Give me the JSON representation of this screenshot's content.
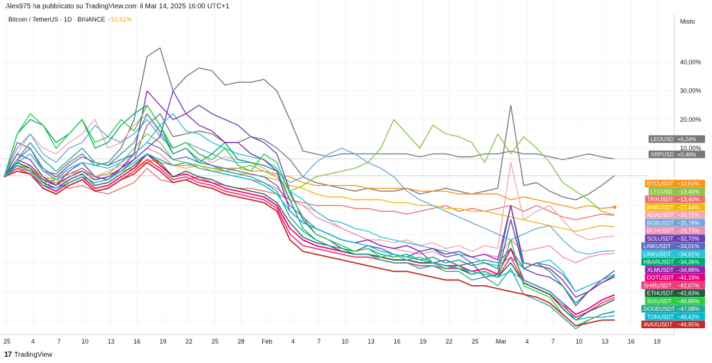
{
  "header": {
    "published": "Alex975 ha pubblicato su TradingView.com il Mar 14, 2025 16:00 UTC+1",
    "symbol": "Bitcoin / TetherUS · 1D · BINANCE",
    "change": "−10,61%"
  },
  "scale_title": "Misto",
  "footer": {
    "logo": "17",
    "brand": "TradingView"
  },
  "chart_data": {
    "type": "line",
    "title": "Bitcoin / TetherUS · 1D · BINANCE",
    "ylabel": "Misto",
    "ylim": [
      -55,
      52
    ],
    "grid": true,
    "x_ticks": [
      "25",
      "4",
      "7",
      "10",
      "13",
      "16",
      "19",
      "22",
      "25",
      "28",
      "Feb",
      "4",
      "7",
      "10",
      "13",
      "16",
      "19",
      "22",
      "25",
      "Mar",
      "4",
      "7",
      "10",
      "13",
      "16",
      "19"
    ],
    "y_ticks": [
      "40,00%",
      "30,00%",
      "20,00%",
      "10,00%"
    ],
    "y_tick_values": [
      40,
      30,
      20,
      10
    ],
    "series": [
      {
        "name": "LEOUSD",
        "color": "#777777",
        "end": 6.24,
        "label": "+6,24%",
        "values": [
          0,
          12,
          10,
          2,
          1,
          5,
          8,
          4,
          5,
          10,
          20,
          42,
          45,
          30,
          35,
          38,
          37,
          32,
          33,
          33,
          34,
          30,
          20,
          9,
          8,
          7,
          8,
          8,
          8,
          8,
          8,
          8,
          7,
          8,
          8,
          7,
          7,
          8,
          8,
          9,
          8,
          8,
          7,
          6,
          7,
          8,
          7,
          6.24
        ]
      },
      {
        "name": "XRPUSD",
        "color": "#777777",
        "end": 0.46,
        "label": "+0,46%",
        "values": [
          0,
          4,
          3,
          -2,
          -1,
          1,
          3,
          0,
          -1,
          2,
          6,
          18,
          22,
          14,
          15,
          16,
          15,
          12,
          12,
          14,
          13,
          10,
          6,
          0,
          -2,
          -3,
          -4,
          -5,
          -4,
          -5,
          -5,
          -4,
          -6,
          -5,
          -4,
          -5,
          -6,
          -5,
          -4,
          25,
          -3,
          -2,
          -5,
          -7,
          -8,
          -6,
          -3,
          0.46
        ]
      },
      {
        "name": "BTCUSDT",
        "color": "#f7931a",
        "end": -10.61,
        "label": "−10,61%",
        "values": [
          0,
          3,
          2,
          -1,
          0,
          1,
          2,
          0,
          1,
          2,
          3,
          6,
          5,
          4,
          4,
          4,
          3,
          3,
          3,
          2,
          2,
          1,
          0,
          -2,
          -3,
          -3,
          -3,
          -3,
          -4,
          -4,
          -4,
          -4,
          -5,
          -5,
          -5,
          -6,
          -6,
          -6,
          -6,
          -8,
          -7,
          -8,
          -9,
          -10,
          -11,
          -10,
          -11,
          -10.61
        ]
      },
      {
        "name": "LTCUSD",
        "color": "#8bc34a",
        "end": -13.4,
        "label": "−13,40%",
        "values": [
          0,
          5,
          3,
          -1,
          -2,
          0,
          2,
          0,
          1,
          5,
          10,
          15,
          12,
          6,
          5,
          4,
          3,
          2,
          3,
          4,
          2,
          0,
          -5,
          -3,
          0,
          1,
          2,
          3,
          5,
          10,
          20,
          15,
          10,
          18,
          15,
          14,
          12,
          5,
          15,
          8,
          14,
          10,
          5,
          -2,
          -5,
          -8,
          -12,
          -13.4
        ]
      },
      {
        "name": "TRXUSDT",
        "color": "#e57373",
        "end": -13.4,
        "label": "−13,40%",
        "values": [
          0,
          2,
          1,
          -3,
          -2,
          -4,
          -3,
          -5,
          -6,
          -4,
          -2,
          3,
          -1,
          -2,
          -1,
          0,
          -2,
          -3,
          -4,
          -4,
          -5,
          -6,
          -8,
          -9,
          -10,
          -10,
          -10,
          -11,
          -11,
          -12,
          -12,
          -13,
          -12,
          -11,
          -10,
          -12,
          -11,
          -12,
          -11,
          -10,
          -12,
          -10,
          -12,
          -14,
          -15,
          -14,
          -13,
          -13.4
        ]
      },
      {
        "name": "BNBUSDT",
        "color": "#f0b90b",
        "end": -17.44,
        "label": "−17,44%",
        "values": [
          0,
          3,
          4,
          0,
          -1,
          -2,
          0,
          -1,
          0,
          2,
          3,
          5,
          6,
          4,
          3,
          4,
          2,
          2,
          1,
          1,
          0,
          -1,
          -3,
          -4,
          -6,
          -7,
          -7,
          -8,
          -8,
          -8,
          -9,
          -9,
          -10,
          -10,
          -11,
          -11,
          -12,
          -12,
          -13,
          -14,
          -15,
          -16,
          -17,
          -18,
          -19,
          -18,
          -17,
          -17.44
        ]
      },
      {
        "name": "ADAUSDT",
        "color": "#f4a6b8",
        "end": -20.71,
        "label": "−20,71%",
        "values": [
          0,
          8,
          15,
          10,
          8,
          12,
          15,
          20,
          10,
          12,
          18,
          22,
          15,
          10,
          12,
          8,
          5,
          7,
          6,
          5,
          3,
          0,
          -8,
          -10,
          -12,
          -15,
          -18,
          -20,
          -22,
          -22,
          -23,
          -22,
          -24,
          -23,
          -25,
          -24,
          -26,
          -24,
          -25,
          5,
          -15,
          -12,
          -10,
          -15,
          -20,
          -22,
          -21,
          -20.71
        ]
      },
      {
        "name": "BGBUSDT",
        "color": "#6fa8dc",
        "end": -25.78,
        "label": "−25,78%",
        "values": [
          0,
          10,
          15,
          8,
          5,
          10,
          12,
          18,
          14,
          12,
          15,
          20,
          14,
          10,
          12,
          10,
          8,
          6,
          5,
          5,
          4,
          2,
          -2,
          0,
          5,
          8,
          10,
          8,
          5,
          3,
          0,
          -5,
          -8,
          -10,
          -12,
          -14,
          -16,
          -18,
          -20,
          -22,
          -20,
          -18,
          -17,
          -22,
          -26,
          -27,
          -26,
          -25.78
        ]
      },
      {
        "name": "BCHUSDT",
        "color": "#f48fb1",
        "end": -26.73,
        "label": "−26,73%",
        "values": [
          0,
          5,
          8,
          2,
          0,
          3,
          5,
          0,
          2,
          4,
          6,
          10,
          8,
          4,
          5,
          3,
          2,
          1,
          0,
          -1,
          -2,
          -4,
          -8,
          -10,
          -14,
          -16,
          -18,
          -20,
          -22,
          -24,
          -25,
          -26,
          -27,
          -26,
          -28,
          -27,
          -28,
          -27,
          -28,
          -22,
          -26,
          -25,
          -24,
          -28,
          -30,
          -28,
          -27,
          -26.73
        ]
      },
      {
        "name": "SOLUSDT",
        "color": "#6a3fb5",
        "end": -32.7,
        "label": "−32,70%",
        "values": [
          0,
          8,
          6,
          0,
          -3,
          2,
          5,
          0,
          -1,
          3,
          6,
          10,
          14,
          30,
          22,
          25,
          22,
          20,
          18,
          14,
          12,
          8,
          -5,
          -15,
          -20,
          -22,
          -25,
          -26,
          -24,
          -25,
          -27,
          -28,
          -26,
          -30,
          -29,
          -31,
          -30,
          -35,
          -34,
          -15,
          -32,
          -34,
          -35,
          -38,
          -45,
          -40,
          -36,
          -32.7
        ]
      },
      {
        "name": "LINKUSDT",
        "color": "#5c6bc0",
        "end": -34.01,
        "label": "−34,01%",
        "values": [
          0,
          6,
          10,
          3,
          0,
          4,
          7,
          5,
          4,
          6,
          8,
          12,
          10,
          6,
          7,
          5,
          4,
          3,
          2,
          1,
          0,
          -3,
          -10,
          -14,
          -18,
          -20,
          -22,
          -23,
          -22,
          -24,
          -25,
          -24,
          -26,
          -25,
          -28,
          -27,
          -30,
          -29,
          -30,
          -25,
          -32,
          -30,
          -31,
          -34,
          -40,
          -38,
          -36,
          -34.01
        ]
      },
      {
        "name": "LINKUSDT",
        "color": "#26c6da",
        "end": -34.01,
        "label": "−34,01%",
        "values": [
          0,
          5,
          8,
          2,
          -1,
          3,
          5,
          4,
          3,
          5,
          8,
          12,
          18,
          22,
          16,
          15,
          12,
          10,
          8,
          7,
          6,
          3,
          -5,
          -8,
          -12,
          -15,
          -16,
          -18,
          -19,
          -21,
          -22,
          -23,
          -24,
          -25,
          -26,
          -27,
          -28,
          -30,
          -31,
          -28,
          -32,
          -30,
          -29,
          -33,
          -40,
          -38,
          -36,
          -34.01
        ]
      },
      {
        "name": "HBARUSDT",
        "color": "#00a86b",
        "end": -34.36,
        "label": "−34,36%",
        "values": [
          0,
          15,
          20,
          18,
          12,
          15,
          20,
          10,
          12,
          18,
          22,
          25,
          18,
          8,
          10,
          5,
          8,
          12,
          6,
          5,
          4,
          2,
          -8,
          -18,
          -22,
          -24,
          -25,
          -26,
          -25,
          -27,
          -28,
          -27,
          -29,
          -28,
          -30,
          -29,
          -31,
          -30,
          -32,
          -10,
          -32,
          -30,
          -33,
          -38,
          -44,
          -40,
          -37,
          -34.36
        ]
      },
      {
        "name": "XLMUSDT",
        "color": "#8e24aa",
        "end": -34.88,
        "label": "−34,88%",
        "values": [
          0,
          6,
          4,
          -1,
          -3,
          0,
          2,
          -1,
          0,
          3,
          8,
          30,
          25,
          20,
          22,
          18,
          16,
          12,
          12,
          8,
          6,
          2,
          -12,
          -16,
          -18,
          -20,
          -22,
          -23,
          -22,
          -24,
          -25,
          -24,
          -26,
          -25,
          -27,
          -26,
          -28,
          -27,
          -29,
          -10,
          -30,
          -31,
          -32,
          -36,
          -42,
          -40,
          -37,
          -34.88
        ]
      },
      {
        "name": "DOTUSDT",
        "color": "#e6007a",
        "end": -41.16,
        "label": "−41,16%",
        "values": [
          0,
          4,
          2,
          -3,
          -5,
          -2,
          0,
          -4,
          -3,
          0,
          3,
          8,
          4,
          0,
          1,
          -1,
          -2,
          -4,
          -5,
          -6,
          -7,
          -10,
          -18,
          -22,
          -24,
          -25,
          -26,
          -27,
          -27,
          -28,
          -29,
          -29,
          -30,
          -30,
          -31,
          -31,
          -33,
          -32,
          -34,
          -25,
          -36,
          -38,
          -40,
          -44,
          -48,
          -46,
          -43,
          -41.16
        ]
      },
      {
        "name": "SHIBUSDT",
        "color": "#ec407a",
        "end": -42.07,
        "label": "−42,07%",
        "values": [
          0,
          3,
          1,
          -4,
          -6,
          -3,
          -1,
          -5,
          -4,
          -1,
          2,
          6,
          3,
          -1,
          0,
          -2,
          -3,
          -5,
          -6,
          -7,
          -8,
          -11,
          -20,
          -24,
          -25,
          -26,
          -27,
          -28,
          -28,
          -29,
          -30,
          -30,
          -31,
          -31,
          -32,
          -32,
          -34,
          -33,
          -35,
          -28,
          -37,
          -39,
          -41,
          -45,
          -49,
          -47,
          -44,
          -42.07
        ]
      },
      {
        "name": "ETHUSDT",
        "color": "#1b5e3c",
        "end": -42.83,
        "label": "−42,83%",
        "values": [
          0,
          5,
          3,
          -2,
          -4,
          -1,
          1,
          -3,
          -2,
          1,
          4,
          8,
          5,
          0,
          2,
          0,
          -1,
          -3,
          -4,
          -5,
          -6,
          -9,
          -16,
          -21,
          -23,
          -24,
          -26,
          -27,
          -27,
          -28,
          -29,
          -29,
          -30,
          -30,
          -31,
          -32,
          -34,
          -33,
          -35,
          -30,
          -37,
          -39,
          -41,
          -46,
          -50,
          -47,
          -45,
          -42.83
        ]
      },
      {
        "name": "SUIUSDT",
        "color": "#2ecc40",
        "end": -46.89,
        "label": "−46,89%",
        "values": [
          0,
          15,
          22,
          18,
          10,
          15,
          20,
          12,
          14,
          20,
          16,
          25,
          18,
          10,
          12,
          8,
          6,
          10,
          4,
          2,
          8,
          5,
          -6,
          -14,
          -20,
          -22,
          -24,
          -26,
          -25,
          -28,
          -27,
          -29,
          -28,
          -30,
          -32,
          -31,
          -34,
          -33,
          -35,
          -22,
          -38,
          -40,
          -42,
          -48,
          -52,
          -50,
          -48,
          -46.89
        ]
      },
      {
        "name": "DOGEUSDT",
        "color": "#26a69a",
        "end": -47.08,
        "label": "−47,08%",
        "values": [
          0,
          6,
          12,
          6,
          2,
          6,
          10,
          5,
          4,
          8,
          12,
          22,
          16,
          8,
          10,
          6,
          4,
          2,
          1,
          0,
          -2,
          -5,
          -14,
          -19,
          -22,
          -24,
          -25,
          -27,
          -27,
          -29,
          -30,
          -30,
          -32,
          -31,
          -33,
          -33,
          -36,
          -35,
          -38,
          -32,
          -41,
          -43,
          -45,
          -49,
          -53,
          -50,
          -48,
          -47.08
        ]
      },
      {
        "name": "TONUSDT",
        "color": "#00bcd4",
        "end": -48.42,
        "label": "−48,42%",
        "values": [
          0,
          4,
          2,
          -3,
          -4,
          -2,
          0,
          -2,
          -1,
          2,
          5,
          8,
          6,
          4,
          5,
          3,
          2,
          1,
          0,
          -1,
          -3,
          -6,
          -12,
          -16,
          -18,
          -20,
          -22,
          -23,
          -24,
          -26,
          -27,
          -28,
          -29,
          -30,
          -31,
          -32,
          -33,
          -34,
          -35,
          -33,
          -36,
          -38,
          -40,
          -44,
          -50,
          -49,
          -49,
          -48.42
        ]
      },
      {
        "name": "AVAXUSDT",
        "color": "#c62828",
        "end": -49.95,
        "label": "−49,95%",
        "values": [
          0,
          2,
          1,
          -4,
          -6,
          -3,
          -1,
          -5,
          -4,
          -1,
          1,
          5,
          2,
          -2,
          -1,
          -3,
          -4,
          -6,
          -7,
          -8,
          -9,
          -12,
          -22,
          -26,
          -27,
          -28,
          -29,
          -30,
          -31,
          -32,
          -33,
          -33,
          -34,
          -35,
          -36,
          -36,
          -38,
          -38,
          -39,
          -40,
          -41,
          -42,
          -44,
          -48,
          -52,
          -51,
          -50,
          -49.95
        ]
      }
    ]
  }
}
